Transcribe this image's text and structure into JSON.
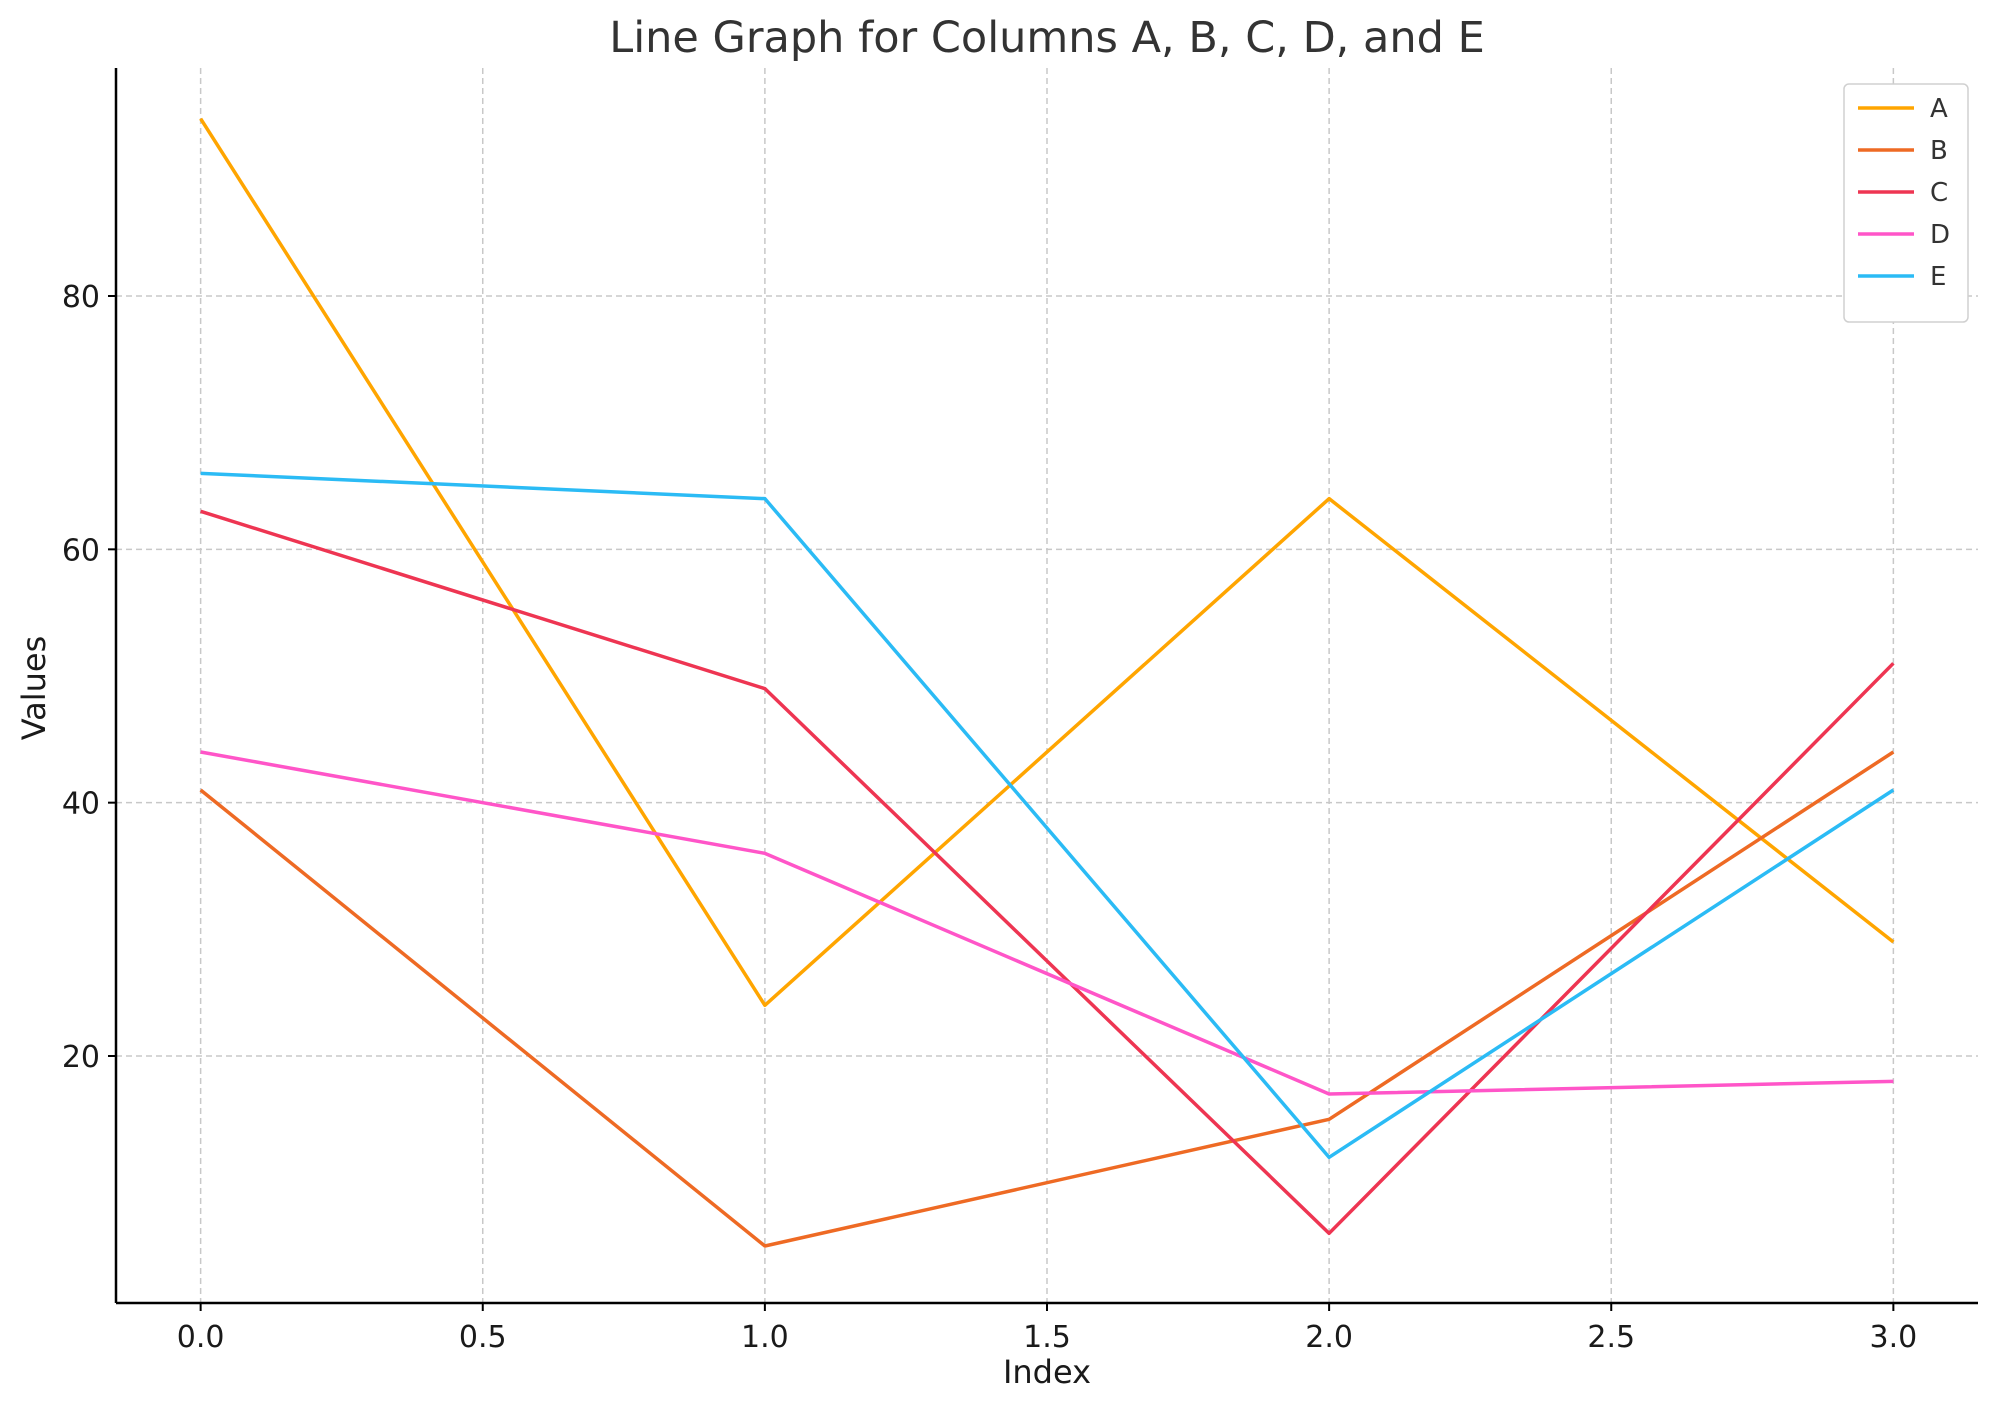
{
  "chart_data": {
    "type": "line",
    "title": "Line Graph for Columns A, B, C, D, and E",
    "xlabel": "Index",
    "ylabel": "Values",
    "x": [
      0,
      1,
      2,
      3
    ],
    "xlim": [
      -0.15,
      3.15
    ],
    "ylim": [
      0.5,
      98
    ],
    "xticks": [
      0.0,
      0.5,
      1.0,
      1.5,
      2.0,
      2.5,
      3.0
    ],
    "xtick_labels": [
      "0.0",
      "0.5",
      "1.0",
      "1.5",
      "2.0",
      "2.5",
      "3.0"
    ],
    "yticks": [
      20,
      40,
      60,
      80
    ],
    "ytick_labels": [
      "20",
      "40",
      "60",
      "80"
    ],
    "grid": true,
    "legend_position": "top-right",
    "series": [
      {
        "name": "A",
        "color": "#FFA500",
        "values": [
          94,
          24,
          64,
          29
        ]
      },
      {
        "name": "B",
        "color": "#EE6A24",
        "values": [
          41,
          5,
          15,
          44
        ]
      },
      {
        "name": "C",
        "color": "#EE3552",
        "values": [
          63,
          49,
          6,
          51
        ]
      },
      {
        "name": "D",
        "color": "#FF55C8",
        "values": [
          44,
          36,
          17,
          18
        ]
      },
      {
        "name": "E",
        "color": "#2BBBF5",
        "values": [
          66,
          64,
          12,
          41
        ]
      }
    ]
  }
}
